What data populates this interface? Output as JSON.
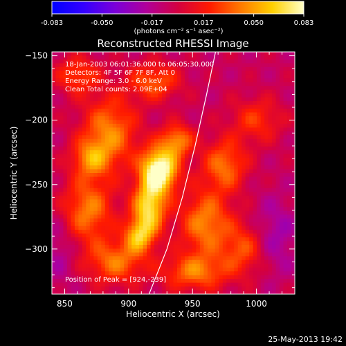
{
  "colorbar": {
    "ticks": [
      "-0.083",
      "-0.050",
      "-0.017",
      "0.017",
      "0.050",
      "0.083"
    ],
    "tick_values": [
      -0.083,
      -0.05,
      -0.017,
      0.017,
      0.05,
      0.083
    ],
    "range": [
      -0.083,
      0.083
    ],
    "units_label": "(photons cm⁻² s⁻¹ asec⁻²)",
    "colors": [
      "#0000ff",
      "#3300ff",
      "#7a00d9",
      "#b0009a",
      "#d40040",
      "#ff1a00",
      "#ff7a00",
      "#ffd000",
      "#ffffc8"
    ]
  },
  "chart_data": {
    "type": "heatmap",
    "title": "Reconstructed RHESSI Image",
    "xlabel": "Heliocentric X (arcsec)",
    "ylabel": "Heliocentric Y (arcsec)",
    "xlim": [
      840,
      1030
    ],
    "ylim": [
      -335,
      -147
    ],
    "x_ticks": [
      850,
      900,
      950,
      1000
    ],
    "y_ticks": [
      -150,
      -200,
      -250,
      -300
    ],
    "info_lines": [
      "18-Jan-2003 06:01:36.000 to 06:05:30.000",
      "Detectors: 4F 5F 6F 7F 8F, Att 0",
      "Energy Range: 3.0 - 6.0 keV",
      "Clean    Total counts: 2.09E+04"
    ],
    "peak_text": "Position of Peak = [924,-239]",
    "peak": {
      "x": 924,
      "y": -239
    },
    "limb_curve": [
      [
        916,
        -335
      ],
      [
        930,
        -300
      ],
      [
        942,
        -260
      ],
      [
        952,
        -220
      ],
      [
        961,
        -180
      ],
      [
        968,
        -147
      ]
    ],
    "blobs": [
      {
        "x": 924,
        "y": -239,
        "sx": 10,
        "sy": 12,
        "a": 0.1
      },
      {
        "x": 916,
        "y": -268,
        "sx": 9,
        "sy": 14,
        "a": 0.075
      },
      {
        "x": 908,
        "y": -290,
        "sx": 8,
        "sy": 9,
        "a": 0.055
      },
      {
        "x": 938,
        "y": -216,
        "sx": 9,
        "sy": 9,
        "a": 0.05
      },
      {
        "x": 885,
        "y": -210,
        "sx": 15,
        "sy": 20,
        "a": 0.05
      },
      {
        "x": 868,
        "y": -270,
        "sx": 14,
        "sy": 18,
        "a": 0.048
      },
      {
        "x": 890,
        "y": -310,
        "sx": 16,
        "sy": 12,
        "a": 0.045
      },
      {
        "x": 960,
        "y": -280,
        "sx": 14,
        "sy": 18,
        "a": 0.05
      },
      {
        "x": 975,
        "y": -235,
        "sx": 12,
        "sy": 14,
        "a": 0.045
      },
      {
        "x": 952,
        "y": -318,
        "sx": 18,
        "sy": 10,
        "a": 0.045
      },
      {
        "x": 990,
        "y": -300,
        "sx": 12,
        "sy": 14,
        "a": 0.035
      },
      {
        "x": 1000,
        "y": -200,
        "sx": 14,
        "sy": 12,
        "a": 0.03
      },
      {
        "x": 860,
        "y": -165,
        "sx": 12,
        "sy": 10,
        "a": 0.035
      },
      {
        "x": 920,
        "y": -170,
        "sx": 14,
        "sy": 10,
        "a": 0.04
      },
      {
        "x": 870,
        "y": -230,
        "sx": 10,
        "sy": 10,
        "a": 0.04
      },
      {
        "x": 1015,
        "y": -290,
        "sx": 12,
        "sy": 20,
        "a": -0.02
      },
      {
        "x": 845,
        "y": -300,
        "sx": 10,
        "sy": 20,
        "a": -0.015
      }
    ]
  },
  "timestamp": "25-May-2013 19:42"
}
